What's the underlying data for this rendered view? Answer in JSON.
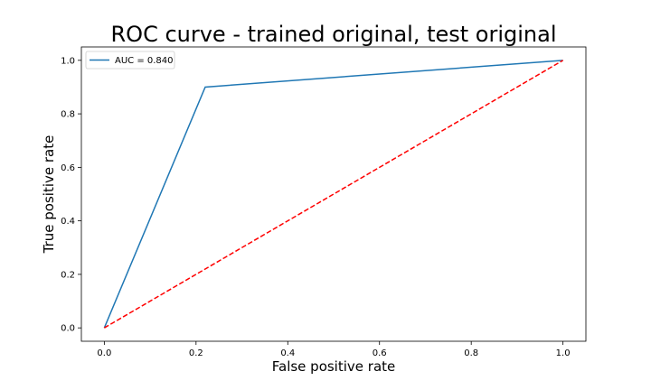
{
  "chart_data": {
    "type": "line",
    "title": "ROC curve - trained original, test original",
    "xlabel": "False positive rate",
    "ylabel": "True positive rate",
    "xlim": [
      -0.05,
      1.05
    ],
    "ylim": [
      -0.05,
      1.05
    ],
    "xticks": [
      0.0,
      0.2,
      0.4,
      0.6,
      0.8,
      1.0
    ],
    "yticks": [
      0.0,
      0.2,
      0.4,
      0.6,
      0.8,
      1.0
    ],
    "xtick_labels": [
      "0.0",
      "0.2",
      "0.4",
      "0.6",
      "0.8",
      "1.0"
    ],
    "ytick_labels": [
      "0.0",
      "0.2",
      "0.4",
      "0.6",
      "0.8",
      "1.0"
    ],
    "grid": false,
    "legend_position": "top-left",
    "series": [
      {
        "name": "AUC = 0.840",
        "x": [
          0.0,
          0.22,
          1.0
        ],
        "y": [
          0.0,
          0.9,
          1.0
        ],
        "color": "#1f77b4",
        "style": "solid"
      },
      {
        "x": [
          0.0,
          1.0
        ],
        "y": [
          0.0,
          1.0
        ],
        "color": "#ff0000",
        "style": "dashed"
      }
    ]
  }
}
